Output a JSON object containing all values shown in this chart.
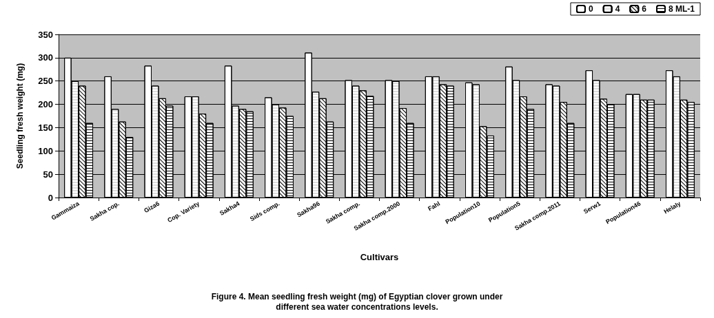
{
  "chart_data": {
    "type": "bar",
    "xlabel": "Cultivars",
    "ylabel": "Seedling fresh weight (mg)",
    "categories": [
      "Gammaiza",
      "Sakha cop.",
      "Giza6",
      "Cop. Variety",
      "Sakha4",
      "Sids comp.",
      "Sakha96",
      "Sakha comp.",
      "Sakha comp.2000",
      "Fahl",
      "Population10",
      "Population5",
      "Sakha comp.2011",
      "Serw1",
      "Population46",
      "Helaly"
    ],
    "series": [
      {
        "name": "0",
        "color": "#ffffff",
        "values": [
          300,
          260,
          283,
          217,
          283,
          215,
          311,
          252,
          252,
          260,
          247,
          281,
          243,
          273,
          222,
          273
        ]
      },
      {
        "name": "4",
        "color": "#ffffff",
        "values": [
          250,
          190,
          240,
          217,
          197,
          200,
          227,
          240,
          250,
          260,
          243,
          252,
          240,
          252,
          222,
          260
        ]
      },
      {
        "name": "6",
        "color": "#ffffff",
        "values": [
          240,
          163,
          213,
          180,
          190,
          193,
          213,
          230,
          192,
          243,
          153,
          217,
          205,
          212,
          210,
          210
        ]
      },
      {
        "name": "8 ML-1",
        "color": "#ffffff",
        "values": [
          160,
          130,
          197,
          160,
          185,
          175,
          163,
          218,
          160,
          240,
          133,
          190,
          160,
          200,
          210,
          205
        ]
      }
    ],
    "ylim": [
      0,
      350
    ],
    "yticks": [
      0,
      50,
      100,
      150,
      200,
      250,
      300,
      350
    ],
    "grid": "y",
    "legend": "top right",
    "annotations": [
      "Figure 4. Mean seedling fresh weight (mg) of Egyptian clover grown under different sea water concentrations levels."
    ]
  }
}
